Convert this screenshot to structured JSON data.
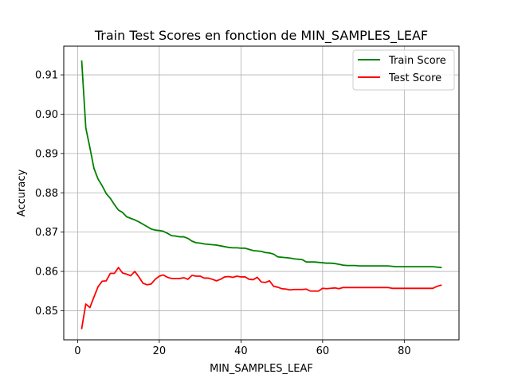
{
  "chart_data": {
    "type": "line",
    "title": "Train Test Scores en fonction de MIN_SAMPLES_LEAF",
    "xlabel": "MIN_SAMPLES_LEAF",
    "ylabel": "Accuracy",
    "xlim": [
      -3.4,
      93.4
    ],
    "ylim": [
      0.8426,
      0.9173
    ],
    "x_ticks": [
      0,
      20,
      40,
      60,
      80
    ],
    "y_ticks": [
      0.85,
      0.86,
      0.87,
      0.88,
      0.89,
      0.9,
      0.91
    ],
    "y_tick_labels": [
      "0.85",
      "0.86",
      "0.87",
      "0.88",
      "0.89",
      "0.90",
      "0.91"
    ],
    "grid": true,
    "legend_position": "top-right",
    "x": [
      1,
      2,
      3,
      4,
      5,
      6,
      7,
      8,
      9,
      10,
      11,
      12,
      13,
      14,
      15,
      16,
      17,
      18,
      19,
      20,
      21,
      22,
      23,
      24,
      25,
      26,
      27,
      28,
      29,
      30,
      31,
      32,
      33,
      34,
      35,
      36,
      37,
      38,
      39,
      40,
      41,
      42,
      43,
      44,
      45,
      46,
      47,
      48,
      49,
      50,
      51,
      52,
      53,
      54,
      55,
      56,
      57,
      58,
      59,
      60,
      61,
      62,
      63,
      64,
      65,
      66,
      67,
      68,
      69,
      70,
      71,
      72,
      73,
      74,
      75,
      76,
      77,
      78,
      79,
      80,
      81,
      82,
      83,
      84,
      85,
      86,
      87,
      88,
      89
    ],
    "series": [
      {
        "name": "Train Score",
        "color": "#008000",
        "values": [
          0.9135,
          0.8965,
          0.8915,
          0.8862,
          0.8835,
          0.8818,
          0.8798,
          0.8786,
          0.877,
          0.8756,
          0.875,
          0.8739,
          0.8735,
          0.8731,
          0.8726,
          0.872,
          0.8714,
          0.8708,
          0.8705,
          0.8704,
          0.8702,
          0.8697,
          0.8691,
          0.869,
          0.8688,
          0.8688,
          0.8684,
          0.8677,
          0.8673,
          0.8672,
          0.867,
          0.8669,
          0.8668,
          0.8667,
          0.8665,
          0.8663,
          0.8661,
          0.866,
          0.866,
          0.8659,
          0.8659,
          0.8656,
          0.8653,
          0.8652,
          0.8651,
          0.8648,
          0.8647,
          0.8644,
          0.8637,
          0.8636,
          0.8635,
          0.8634,
          0.8632,
          0.8631,
          0.863,
          0.8624,
          0.8624,
          0.8624,
          0.8623,
          0.8622,
          0.8621,
          0.8621,
          0.862,
          0.8618,
          0.8616,
          0.8615,
          0.8615,
          0.8615,
          0.8614,
          0.8614,
          0.8614,
          0.8614,
          0.8614,
          0.8614,
          0.8614,
          0.8614,
          0.8613,
          0.8612,
          0.8612,
          0.8612,
          0.8612,
          0.8612,
          0.8612,
          0.8612,
          0.8612,
          0.8612,
          0.8612,
          0.8611,
          0.861
        ]
      },
      {
        "name": "Test Score",
        "color": "#ff0000",
        "values": [
          0.8455,
          0.8517,
          0.8508,
          0.8535,
          0.8561,
          0.8575,
          0.8576,
          0.8595,
          0.8595,
          0.861,
          0.8596,
          0.8593,
          0.8589,
          0.86,
          0.8586,
          0.857,
          0.8566,
          0.8568,
          0.858,
          0.8588,
          0.8591,
          0.8585,
          0.8582,
          0.8582,
          0.8582,
          0.8584,
          0.858,
          0.859,
          0.8588,
          0.8588,
          0.8583,
          0.8583,
          0.858,
          0.8576,
          0.858,
          0.8586,
          0.8587,
          0.8585,
          0.8588,
          0.8586,
          0.8586,
          0.858,
          0.8579,
          0.8585,
          0.8573,
          0.8572,
          0.8576,
          0.8562,
          0.856,
          0.8556,
          0.8555,
          0.8553,
          0.8554,
          0.8554,
          0.8554,
          0.8555,
          0.855,
          0.855,
          0.855,
          0.8557,
          0.8556,
          0.8557,
          0.8558,
          0.8556,
          0.8559,
          0.8559,
          0.8559,
          0.8559,
          0.8559,
          0.8559,
          0.8559,
          0.8559,
          0.8559,
          0.8559,
          0.8559,
          0.8559,
          0.8557,
          0.8557,
          0.8557,
          0.8557,
          0.8557,
          0.8557,
          0.8557,
          0.8557,
          0.8557,
          0.8557,
          0.8557,
          0.8562,
          0.8565
        ]
      }
    ]
  }
}
